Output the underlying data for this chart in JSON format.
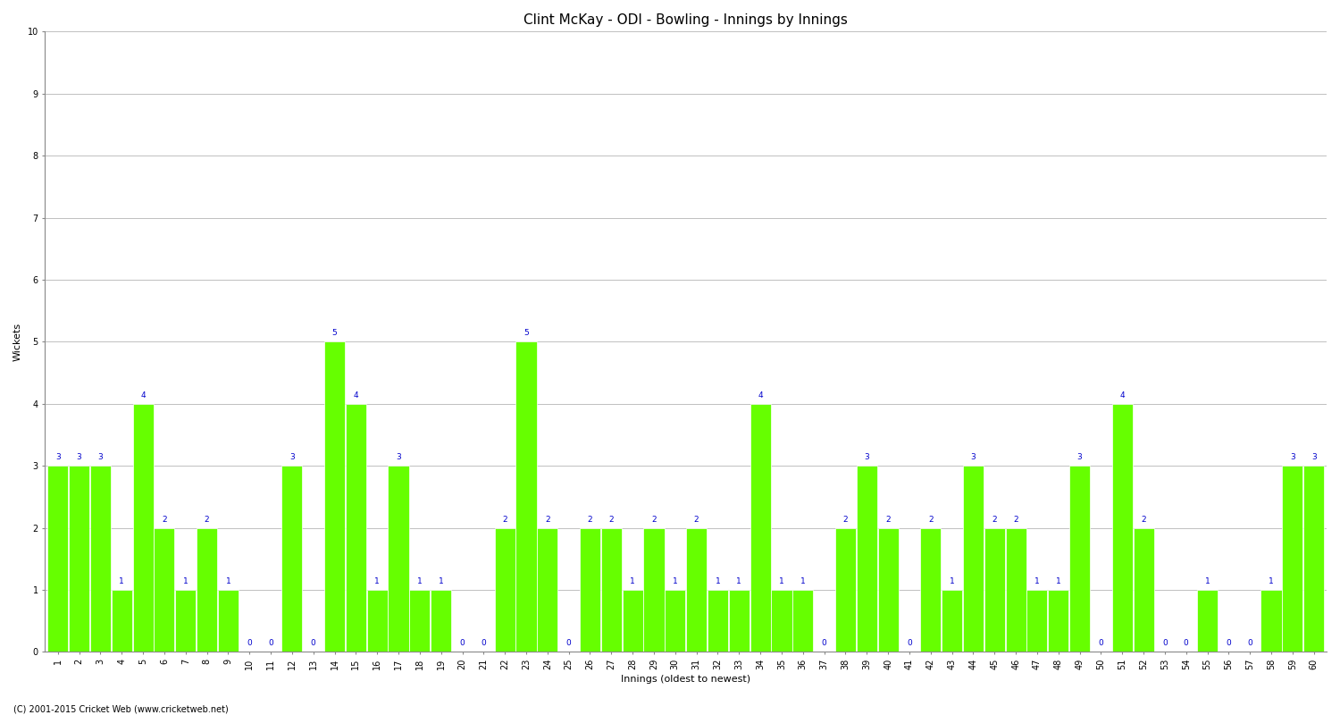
{
  "title": "Clint McKay - ODI - Bowling - Innings by Innings",
  "xlabel": "Innings (oldest to newest)",
  "ylabel": "Wickets",
  "background_color": "#ffffff",
  "bar_color": "#66ff00",
  "label_color": "#0000cc",
  "ylim": [
    0,
    10
  ],
  "yticks": [
    0,
    1,
    2,
    3,
    4,
    5,
    6,
    7,
    8,
    9,
    10
  ],
  "categories": [
    1,
    2,
    3,
    4,
    5,
    6,
    7,
    8,
    9,
    10,
    11,
    12,
    13,
    14,
    15,
    16,
    17,
    18,
    19,
    20,
    21,
    22,
    23,
    24,
    25,
    26,
    27,
    28,
    29,
    30,
    31,
    32,
    33,
    34,
    35,
    36,
    37,
    38,
    39,
    40,
    41,
    42,
    43,
    44,
    45,
    46,
    47,
    48,
    49,
    50,
    51,
    52,
    53,
    54,
    55,
    56,
    57,
    58,
    59,
    60
  ],
  "values": [
    3,
    3,
    3,
    1,
    4,
    2,
    1,
    2,
    1,
    0,
    0,
    3,
    0,
    5,
    4,
    1,
    3,
    1,
    1,
    0,
    0,
    2,
    5,
    2,
    0,
    2,
    2,
    1,
    2,
    1,
    2,
    1,
    1,
    4,
    1,
    1,
    0,
    2,
    3,
    2,
    0,
    2,
    1,
    3,
    2,
    2,
    1,
    1,
    3,
    0,
    4,
    2,
    0,
    0,
    1,
    0,
    0,
    1,
    3,
    3
  ],
  "footer": "(C) 2001-2015 Cricket Web (www.cricketweb.net)",
  "title_fontsize": 11,
  "axis_fontsize": 7,
  "label_fontsize": 6.5,
  "footer_fontsize": 7,
  "bar_width": 0.97
}
